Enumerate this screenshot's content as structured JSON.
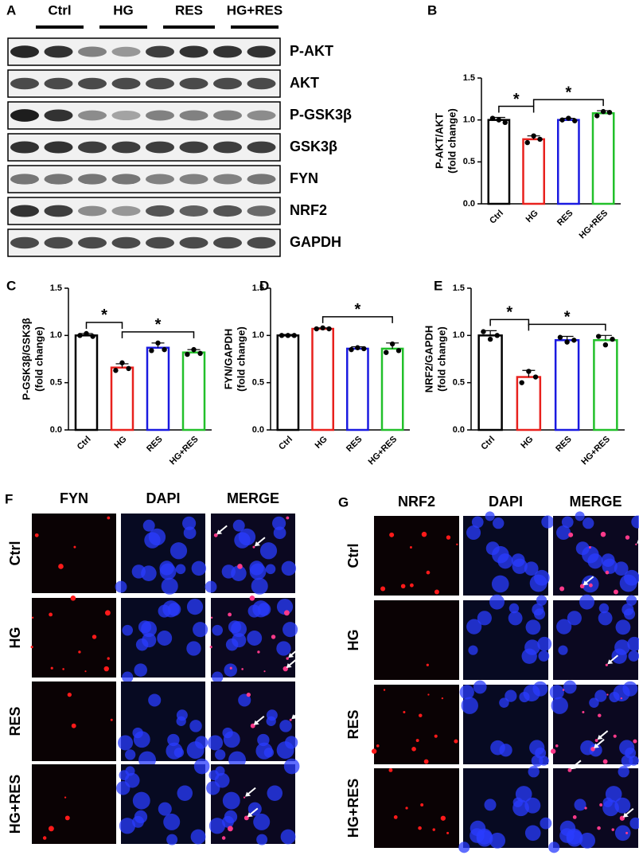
{
  "blot": {
    "letter": "A",
    "groups": [
      "Ctrl",
      "HG",
      "RES",
      "HG+RES"
    ],
    "proteins": [
      "P-AKT",
      "AKT",
      "P-GSK3β",
      "GSK3β",
      "FYN",
      "NRF2",
      "GAPDH"
    ]
  },
  "chart_data": [
    {
      "type": "bar",
      "letter": "B",
      "ylabel": [
        "P-AKT/AKT",
        "(fold change)"
      ],
      "categories": [
        "Ctrl",
        "HG",
        "RES",
        "HG+RES"
      ],
      "colors": [
        "#000000",
        "#e8211d",
        "#1a1ae0",
        "#22c02a"
      ],
      "values": [
        1.0,
        0.77,
        1.0,
        1.08
      ],
      "errors": [
        0.03,
        0.04,
        0.02,
        0.03
      ],
      "points": [
        [
          1.02,
          1.0,
          0.97
        ],
        [
          0.73,
          0.81,
          0.77
        ],
        [
          1.0,
          1.02,
          0.99
        ],
        [
          1.05,
          1.1,
          1.09
        ]
      ],
      "ylim": [
        0,
        1.5
      ],
      "yticks": [
        {
          "value": 0,
          "label": "0.0"
        },
        {
          "value": 0.5,
          "label": "0.5"
        },
        {
          "value": 1,
          "label": "1.0"
        },
        {
          "value": 1.5,
          "label": "1.5"
        }
      ],
      "significance": [
        {
          "from": 0,
          "to": 1,
          "label": "*"
        },
        {
          "from": 1,
          "to": 3,
          "label": "*"
        }
      ]
    },
    {
      "type": "bar",
      "letter": "C",
      "ylabel": [
        "P-GSK3β/GSK3β",
        "(fold change)"
      ],
      "categories": [
        "Ctrl",
        "HG",
        "RES",
        "HG+RES"
      ],
      "colors": [
        "#000000",
        "#e8211d",
        "#1a1ae0",
        "#22c02a"
      ],
      "values": [
        1.0,
        0.66,
        0.87,
        0.82
      ],
      "errors": [
        0.02,
        0.04,
        0.05,
        0.03
      ],
      "points": [
        [
          1.0,
          1.02,
          0.99
        ],
        [
          0.63,
          0.71,
          0.65
        ],
        [
          0.84,
          0.92,
          0.85
        ],
        [
          0.8,
          0.85,
          0.81
        ]
      ],
      "ylim": [
        0,
        1.5
      ],
      "yticks": [
        {
          "value": 0,
          "label": "0.0"
        },
        {
          "value": 0.5,
          "label": "0.5"
        },
        {
          "value": 1,
          "label": "1.0"
        },
        {
          "value": 1.5,
          "label": "1.5"
        }
      ],
      "significance": [
        {
          "from": 0,
          "to": 1,
          "label": "*"
        },
        {
          "from": 1,
          "to": 3,
          "label": "*"
        }
      ]
    },
    {
      "type": "bar",
      "letter": "D",
      "ylabel": [
        "FYN/GAPDH",
        "(fold change)"
      ],
      "categories": [
        "Ctrl",
        "HG",
        "RES",
        "HG+RES"
      ],
      "colors": [
        "#000000",
        "#e8211d",
        "#1a1ae0",
        "#22c02a"
      ],
      "values": [
        1.0,
        1.07,
        0.86,
        0.86
      ],
      "errors": [
        0.01,
        0.01,
        0.02,
        0.06
      ],
      "points": [
        [
          1.0,
          1.0,
          1.0
        ],
        [
          1.07,
          1.08,
          1.07
        ],
        [
          0.85,
          0.87,
          0.86
        ],
        [
          0.82,
          0.91,
          0.84
        ]
      ],
      "ylim": [
        0,
        1.5
      ],
      "yticks": [
        {
          "value": 0,
          "label": "0.0"
        },
        {
          "value": 0.5,
          "label": "0.5"
        },
        {
          "value": 1,
          "label": "1.0"
        },
        {
          "value": 1.5,
          "label": "1.5"
        }
      ],
      "significance": [
        {
          "from": 1,
          "to": 3,
          "label": "*"
        }
      ]
    },
    {
      "type": "bar",
      "letter": "E",
      "ylabel": [
        "NRF2/GAPDH",
        "(fold change)"
      ],
      "categories": [
        "Ctrl",
        "HG",
        "RES",
        "HG+RES"
      ],
      "colors": [
        "#000000",
        "#e8211d",
        "#1a1ae0",
        "#22c02a"
      ],
      "values": [
        1.0,
        0.56,
        0.95,
        0.95
      ],
      "errors": [
        0.05,
        0.07,
        0.04,
        0.05
      ],
      "points": [
        [
          1.04,
          0.96,
          1.0
        ],
        [
          0.5,
          0.62,
          0.56
        ],
        [
          0.98,
          0.93,
          0.95
        ],
        [
          0.99,
          0.9,
          0.96
        ]
      ],
      "ylim": [
        0,
        1.5
      ],
      "yticks": [
        {
          "value": 0,
          "label": "0.0"
        },
        {
          "value": 0.5,
          "label": "0.5"
        },
        {
          "value": 1,
          "label": "1.0"
        },
        {
          "value": 1.5,
          "label": "1.5"
        }
      ],
      "significance": [
        {
          "from": 0,
          "to": 1,
          "label": "*"
        },
        {
          "from": 1,
          "to": 3,
          "label": "*"
        }
      ]
    }
  ],
  "microscopy": [
    {
      "letter": "F",
      "channels": [
        "FYN",
        "DAPI",
        "MERGE"
      ],
      "rows": [
        "Ctrl",
        "HG",
        "RES",
        "HG+RES"
      ]
    },
    {
      "letter": "G",
      "channels": [
        "NRF2",
        "DAPI",
        "MERGE"
      ],
      "rows": [
        "Ctrl",
        "HG",
        "RES",
        "HG+RES"
      ]
    }
  ]
}
